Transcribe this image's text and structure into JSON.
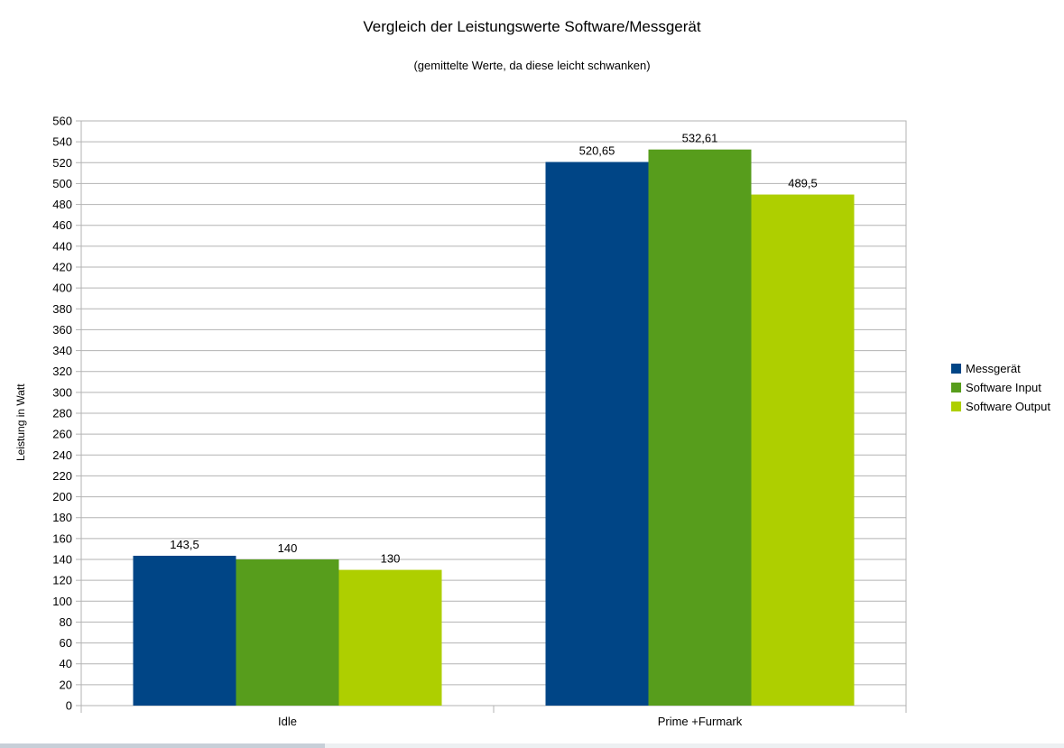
{
  "chart_data": {
    "type": "bar",
    "title": "Vergleich der Leistungswerte Software/Messgerät",
    "subtitle": "(gemittelte Werte, da diese leicht schwanken)",
    "ylabel": "Leistung in Watt",
    "categories": [
      "Idle",
      "Prime +Furmark"
    ],
    "series": [
      {
        "name": "Messgerät",
        "color": "#004586",
        "values": [
          143.5,
          520.65
        ],
        "labels": [
          "143,5",
          "520,65"
        ]
      },
      {
        "name": "Software Input",
        "color": "#579D1C",
        "values": [
          140.0,
          532.61
        ],
        "labels": [
          "140",
          "532,61"
        ]
      },
      {
        "name": "Software Output",
        "color": "#AECF00",
        "values": [
          130.0,
          489.5
        ],
        "labels": [
          "130",
          "489,5"
        ]
      }
    ],
    "ylim": [
      0,
      560
    ],
    "ytick_step": 20,
    "grid": true,
    "legend_position": "right",
    "gridline_color": "#b3b3b3",
    "axis_color": "#b3b3b3",
    "background": "#ffffff",
    "decimal_separator": ","
  }
}
